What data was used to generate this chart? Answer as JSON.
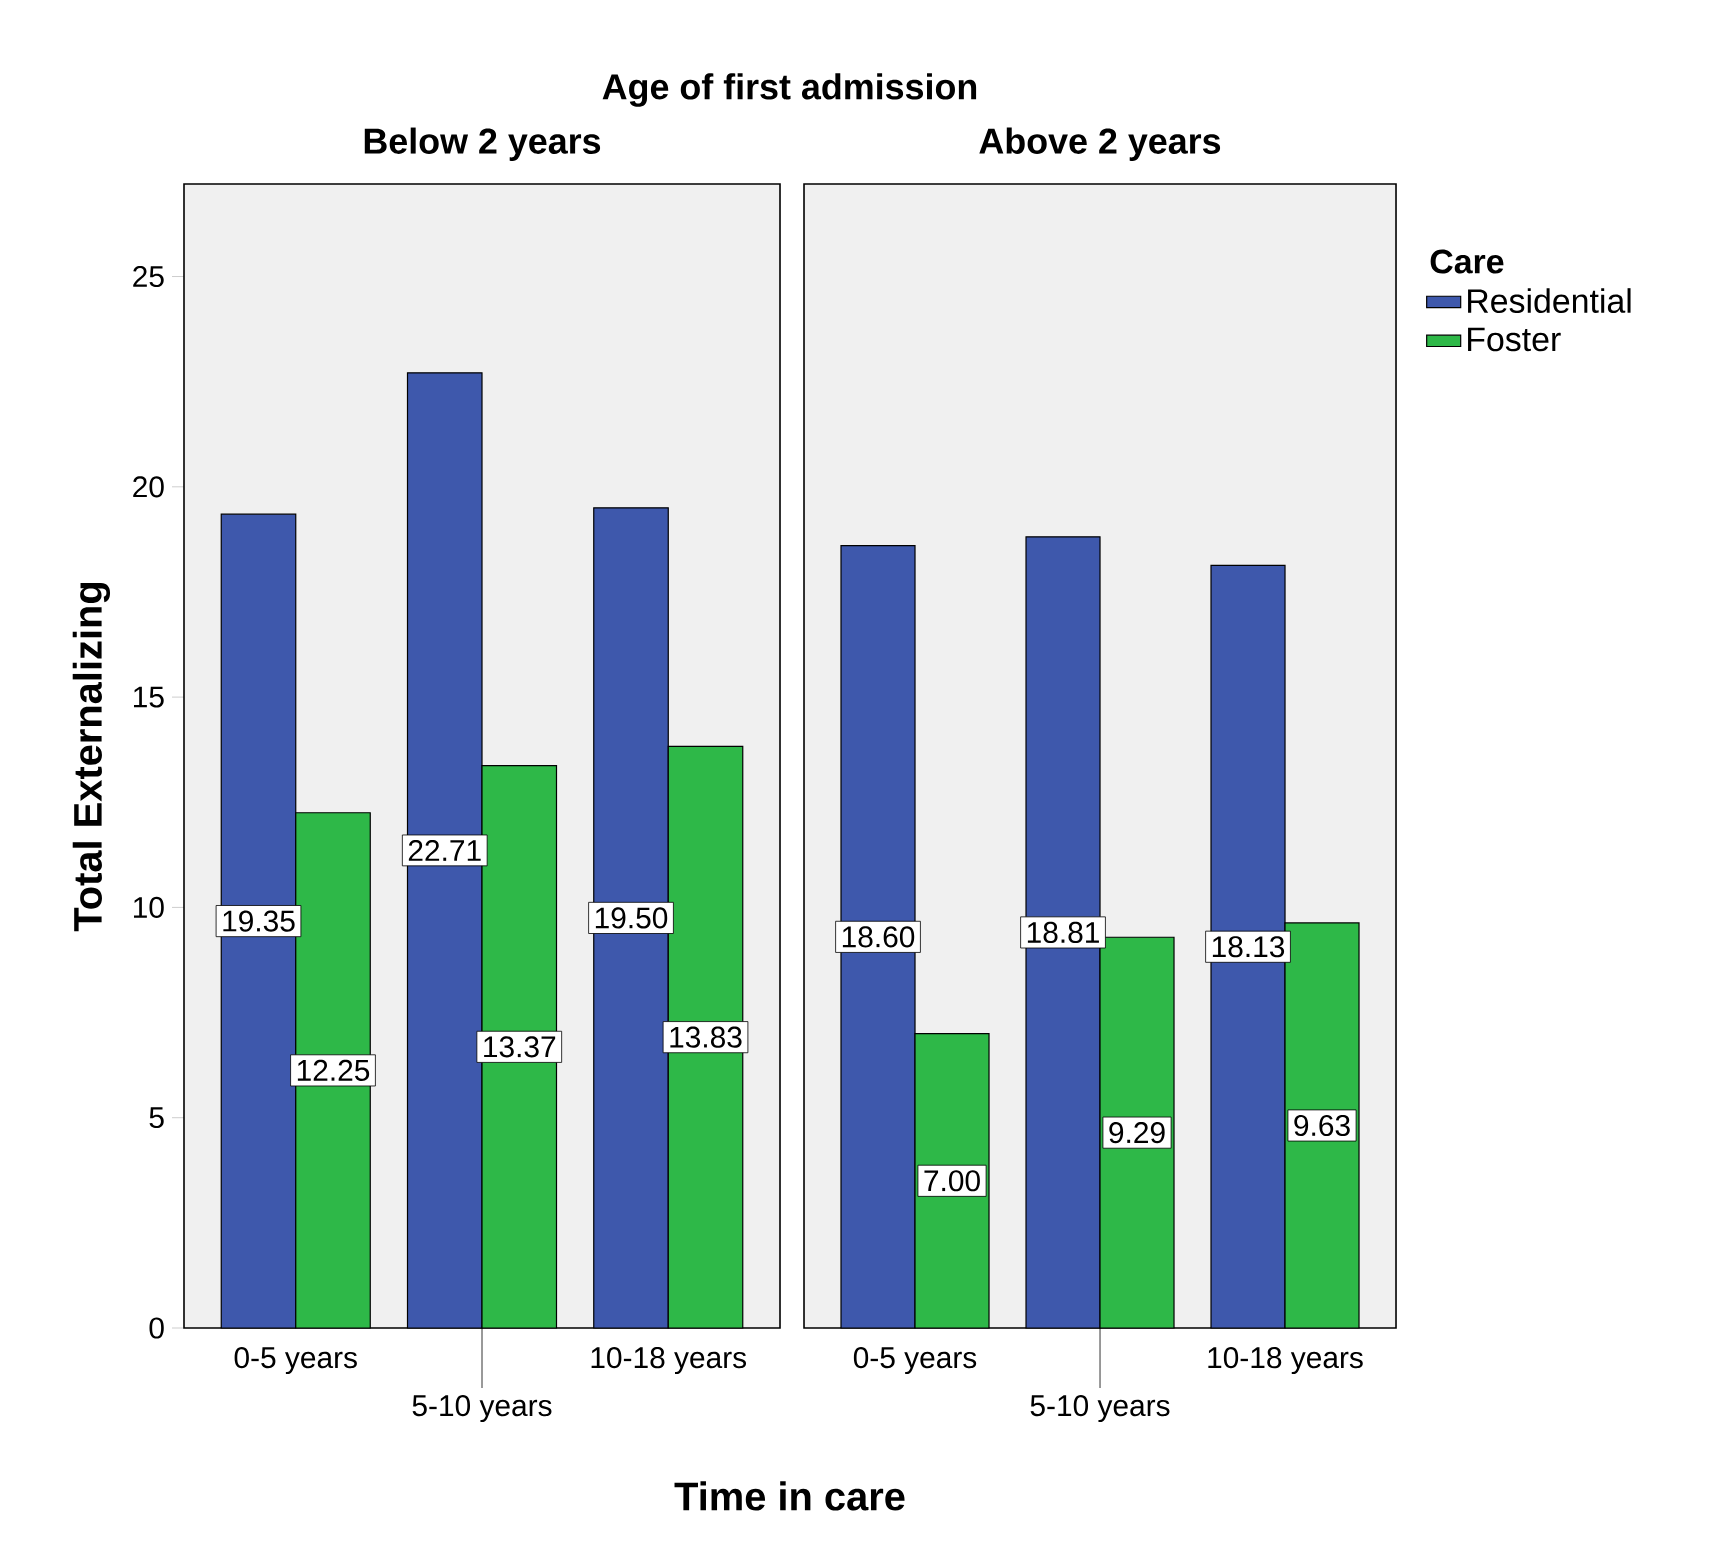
{
  "chart_data": [
    {
      "type": "bar",
      "title": "Below 2 years",
      "xlabel": "Time in care",
      "ylabel": "Total Externalizing",
      "annotations": [
        "Age of first admission"
      ],
      "categories": [
        "0-5 years",
        "5-10 years",
        "10-18 years"
      ],
      "ylim": [
        0,
        27.2
      ],
      "yticks": [
        0,
        5,
        10,
        15,
        20,
        25
      ],
      "series": [
        {
          "color": "#3e58ac",
          "values": [
            19.35,
            22.71,
            19.5
          ],
          "value_labels": [
            "19.35",
            "22.71",
            "19.50"
          ]
        },
        {
          "color": "#2eb848",
          "values": [
            12.25,
            13.37,
            13.83
          ],
          "value_labels": [
            "12.25",
            "13.37",
            "13.83"
          ]
        }
      ]
    },
    {
      "type": "bar",
      "title": "Above 2 years",
      "categories": [
        "0-5 years",
        "5-10 years",
        "10-18 years"
      ],
      "ylim": [
        0,
        27.2
      ],
      "yticks": [
        0,
        5,
        10,
        15,
        20,
        25
      ],
      "tick_labels": "x",
      "legend": "right",
      "legend_title": "Care",
      "series": [
        {
          "name": "Residential",
          "color": "#3e58ac",
          "values": [
            18.6,
            18.81,
            18.13
          ],
          "value_labels": [
            "18.60",
            "18.81",
            "18.13"
          ]
        },
        {
          "name": "Foster",
          "color": "#2eb848",
          "values": [
            7.0,
            9.29,
            9.63
          ],
          "value_labels": [
            "7.00",
            "9.29",
            "9.63"
          ]
        }
      ]
    }
  ]
}
